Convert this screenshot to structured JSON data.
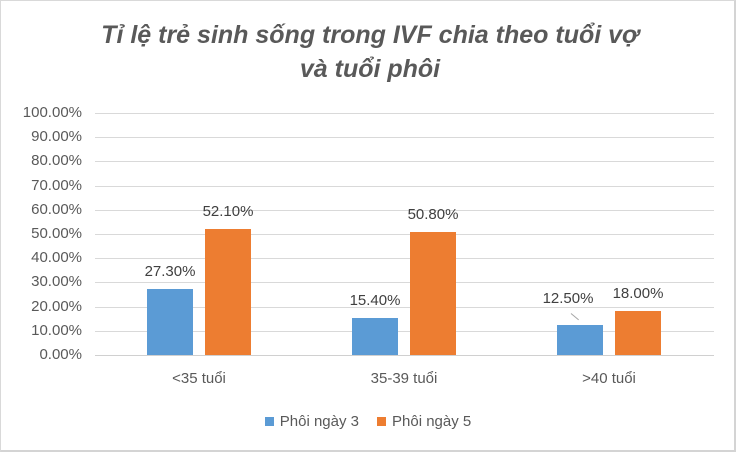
{
  "chart_data": {
    "type": "bar",
    "title": "Tỉ lệ trẻ sinh sống trong IVF chia theo tuổi vợ và tuổi phôi",
    "title_lines": [
      "Tỉ lệ trẻ sinh sống trong IVF chia theo tuổi vợ",
      "và tuổi phôi"
    ],
    "xlabel": "",
    "ylabel": "",
    "categories": [
      "<35 tuổi",
      "35-39 tuổi",
      ">40 tuổi"
    ],
    "series": [
      {
        "name": "Phôi ngày 3",
        "color": "#5b9bd5",
        "values": [
          27.3,
          15.4,
          12.5
        ],
        "labels": [
          "27.30%",
          "15.40%",
          "12.50%"
        ]
      },
      {
        "name": "Phôi ngày 5",
        "color": "#ed7d31",
        "values": [
          52.1,
          50.8,
          18.0
        ],
        "labels": [
          "52.10%",
          "50.80%",
          "18.00%"
        ]
      }
    ],
    "ylim": [
      0,
      100
    ],
    "yticks": [
      "100.00%",
      "90.00%",
      "80.00%",
      "70.00%",
      "60.00%",
      "50.00%",
      "40.00%",
      "30.00%",
      "20.00%",
      "10.00%",
      "0.00%"
    ],
    "grid": true,
    "legend_position": "bottom"
  }
}
